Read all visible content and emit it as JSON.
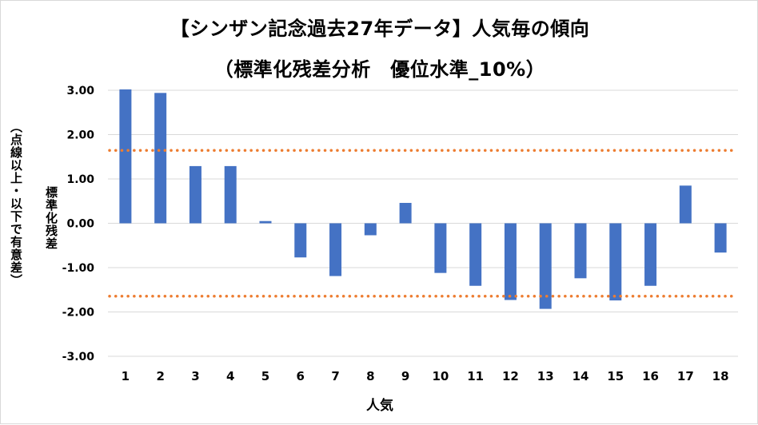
{
  "chart_data": {
    "type": "bar",
    "title": "【シンザン記念過去27年データ】人気毎の傾向",
    "subtitle": "（標準化残差分析　優位水準_10%）",
    "xlabel": "人気",
    "ylabel": "標準化残差",
    "ylabel_note": "（点線以上・以下で有意差）",
    "categories": [
      "1",
      "2",
      "3",
      "4",
      "5",
      "6",
      "7",
      "8",
      "9",
      "10",
      "11",
      "12",
      "13",
      "14",
      "15",
      "16",
      "17",
      "18"
    ],
    "values": [
      3.02,
      2.94,
      1.29,
      1.29,
      0.05,
      -0.77,
      -1.19,
      -0.27,
      0.46,
      -1.12,
      -1.41,
      -1.73,
      -1.93,
      -1.24,
      -1.74,
      -1.41,
      0.85,
      -0.66
    ],
    "ylim": [
      -3,
      3
    ],
    "yticks": [
      "3.00",
      "2.00",
      "1.00",
      "0.00",
      "-1.00",
      "-2.00",
      "-3.00"
    ],
    "thresholds": [
      1.645,
      -1.645
    ],
    "grid": true,
    "bar_color": "#4472C4",
    "threshold_color": "#ED7D31",
    "grid_color": "#d9d9d9"
  }
}
